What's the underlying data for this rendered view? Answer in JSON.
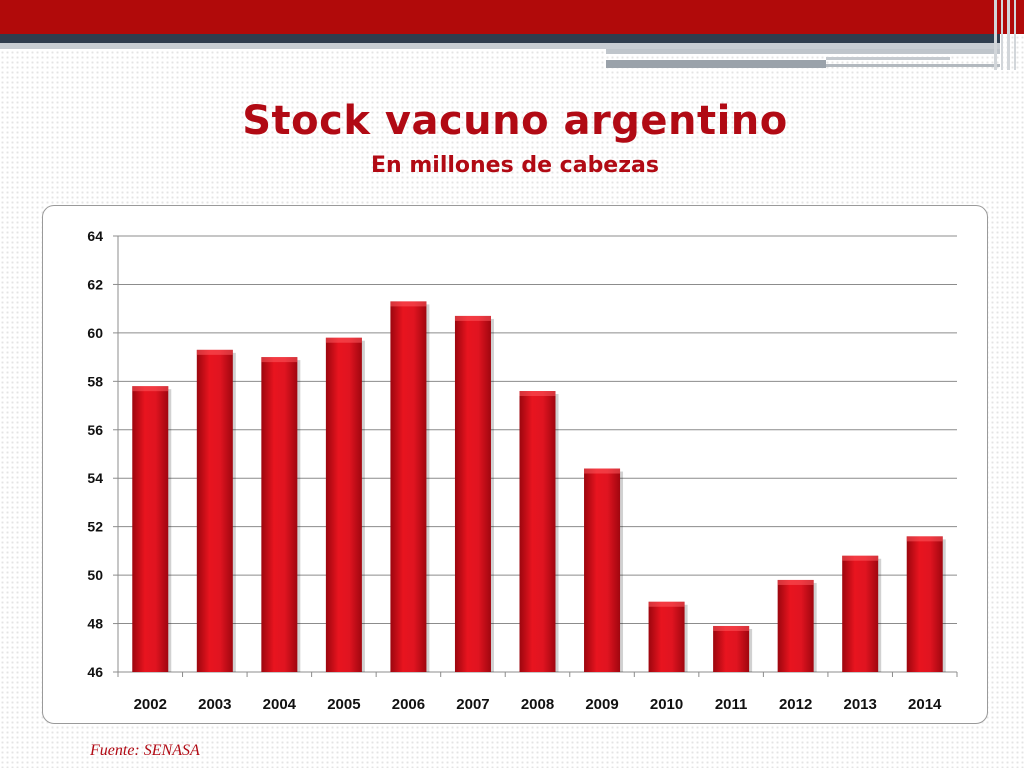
{
  "title": "Stock vacuno argentino",
  "subtitle": "En millones de cabezas",
  "source": "Fuente: SENASA",
  "colors": {
    "accent": "#b10a14",
    "bar": "#d8101c",
    "band": "#b10a0a"
  },
  "chart_data": {
    "type": "bar",
    "categories": [
      "2002",
      "2003",
      "2004",
      "2005",
      "2006",
      "2007",
      "2008",
      "2009",
      "2010",
      "2011",
      "2012",
      "2013",
      "2014"
    ],
    "values": [
      57.8,
      59.3,
      59.0,
      59.8,
      61.3,
      60.7,
      57.6,
      54.4,
      48.9,
      47.9,
      49.8,
      50.8,
      51.6
    ],
    "yticks": [
      "46",
      "48",
      "50",
      "52",
      "54",
      "56",
      "58",
      "60",
      "62",
      "64"
    ],
    "ylim": [
      46,
      64
    ],
    "grid": true,
    "legend": "none"
  }
}
